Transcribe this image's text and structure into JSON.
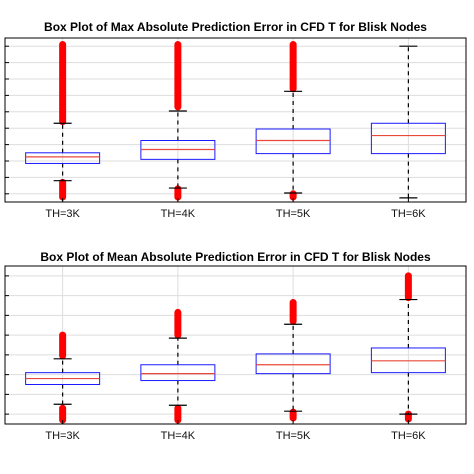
{
  "chart_data": [
    {
      "type": "box",
      "title": "Box Plot of Max Absolute Prediction Error in CFD T for Blisk Nodes",
      "categories": [
        "TH=3K",
        "TH=4K",
        "TH=5K",
        "TH=6K"
      ],
      "xlabel": "",
      "ylabel": "",
      "ylim": [
        0,
        10
      ],
      "y_tick_values": [
        0.5,
        1.5,
        2.5,
        3.5,
        4.5,
        5.5,
        6.5,
        7.5,
        8.5,
        9.5
      ],
      "y_tick_labels_visible": false,
      "grid": true,
      "legend": "none",
      "boxes": [
        {
          "category": "TH=3K",
          "whisker_low": 1.3,
          "q1": 2.35,
          "median": 2.75,
          "q3": 3.0,
          "whisker_high": 4.8,
          "outliers_low": [
            0.3,
            1.2
          ],
          "outliers_high": [
            4.9,
            9.6
          ]
        },
        {
          "category": "TH=4K",
          "whisker_low": 0.85,
          "q1": 2.6,
          "median": 3.2,
          "q3": 3.75,
          "whisker_high": 5.55,
          "outliers_low": [
            0.3,
            0.8
          ],
          "outliers_high": [
            5.8,
            9.6
          ]
        },
        {
          "category": "TH=5K",
          "whisker_low": 0.55,
          "q1": 2.95,
          "median": 3.75,
          "q3": 4.45,
          "whisker_high": 6.75,
          "outliers_low": [
            0.3,
            0.5
          ],
          "outliers_high": [
            6.9,
            9.6
          ]
        },
        {
          "category": "TH=6K",
          "whisker_low": 0.25,
          "q1": 2.95,
          "median": 4.05,
          "q3": 4.8,
          "whisker_high": 9.5,
          "outliers_low": [],
          "outliers_high": []
        }
      ]
    },
    {
      "type": "box",
      "title": "Box Plot of Mean Absolute Prediction Error in CFD T for Blisk Nodes",
      "categories": [
        "TH=3K",
        "TH=4K",
        "TH=5K",
        "TH=6K"
      ],
      "xlabel": "",
      "ylabel": "",
      "ylim": [
        0,
        8
      ],
      "y_tick_values": [
        0.5,
        1.5,
        2.5,
        3.5,
        4.5,
        5.5,
        6.5,
        7.5
      ],
      "y_tick_labels_visible": false,
      "grid": true,
      "legend": "none",
      "boxes": [
        {
          "category": "TH=3K",
          "whisker_low": 1.0,
          "q1": 2.0,
          "median": 2.3,
          "q3": 2.6,
          "whisker_high": 3.3,
          "outliers_low": [
            0.2,
            0.8
          ],
          "outliers_high": [
            3.45,
            4.5
          ]
        },
        {
          "category": "TH=4K",
          "whisker_low": 0.95,
          "q1": 2.2,
          "median": 2.55,
          "q3": 3.0,
          "whisker_high": 4.35,
          "outliers_low": [
            0.2,
            0.8
          ],
          "outliers_high": [
            4.5,
            5.65
          ]
        },
        {
          "category": "TH=5K",
          "whisker_low": 0.65,
          "q1": 2.55,
          "median": 3.0,
          "q3": 3.55,
          "whisker_high": 5.05,
          "outliers_low": [
            0.3,
            0.6
          ],
          "outliers_high": [
            5.2,
            6.15
          ]
        },
        {
          "category": "TH=6K",
          "whisker_low": 0.5,
          "q1": 2.6,
          "median": 3.2,
          "q3": 3.85,
          "whisker_high": 6.3,
          "outliers_low": [
            0.25,
            0.5
          ],
          "outliers_high": [
            6.4,
            7.5
          ]
        }
      ]
    }
  ],
  "colors": {
    "box_edge": "#1a1aff",
    "median": "#e8493a",
    "whisker": "#000000",
    "outlier": "#ff0000",
    "grid": "#dddddd",
    "axes": "#000000"
  }
}
